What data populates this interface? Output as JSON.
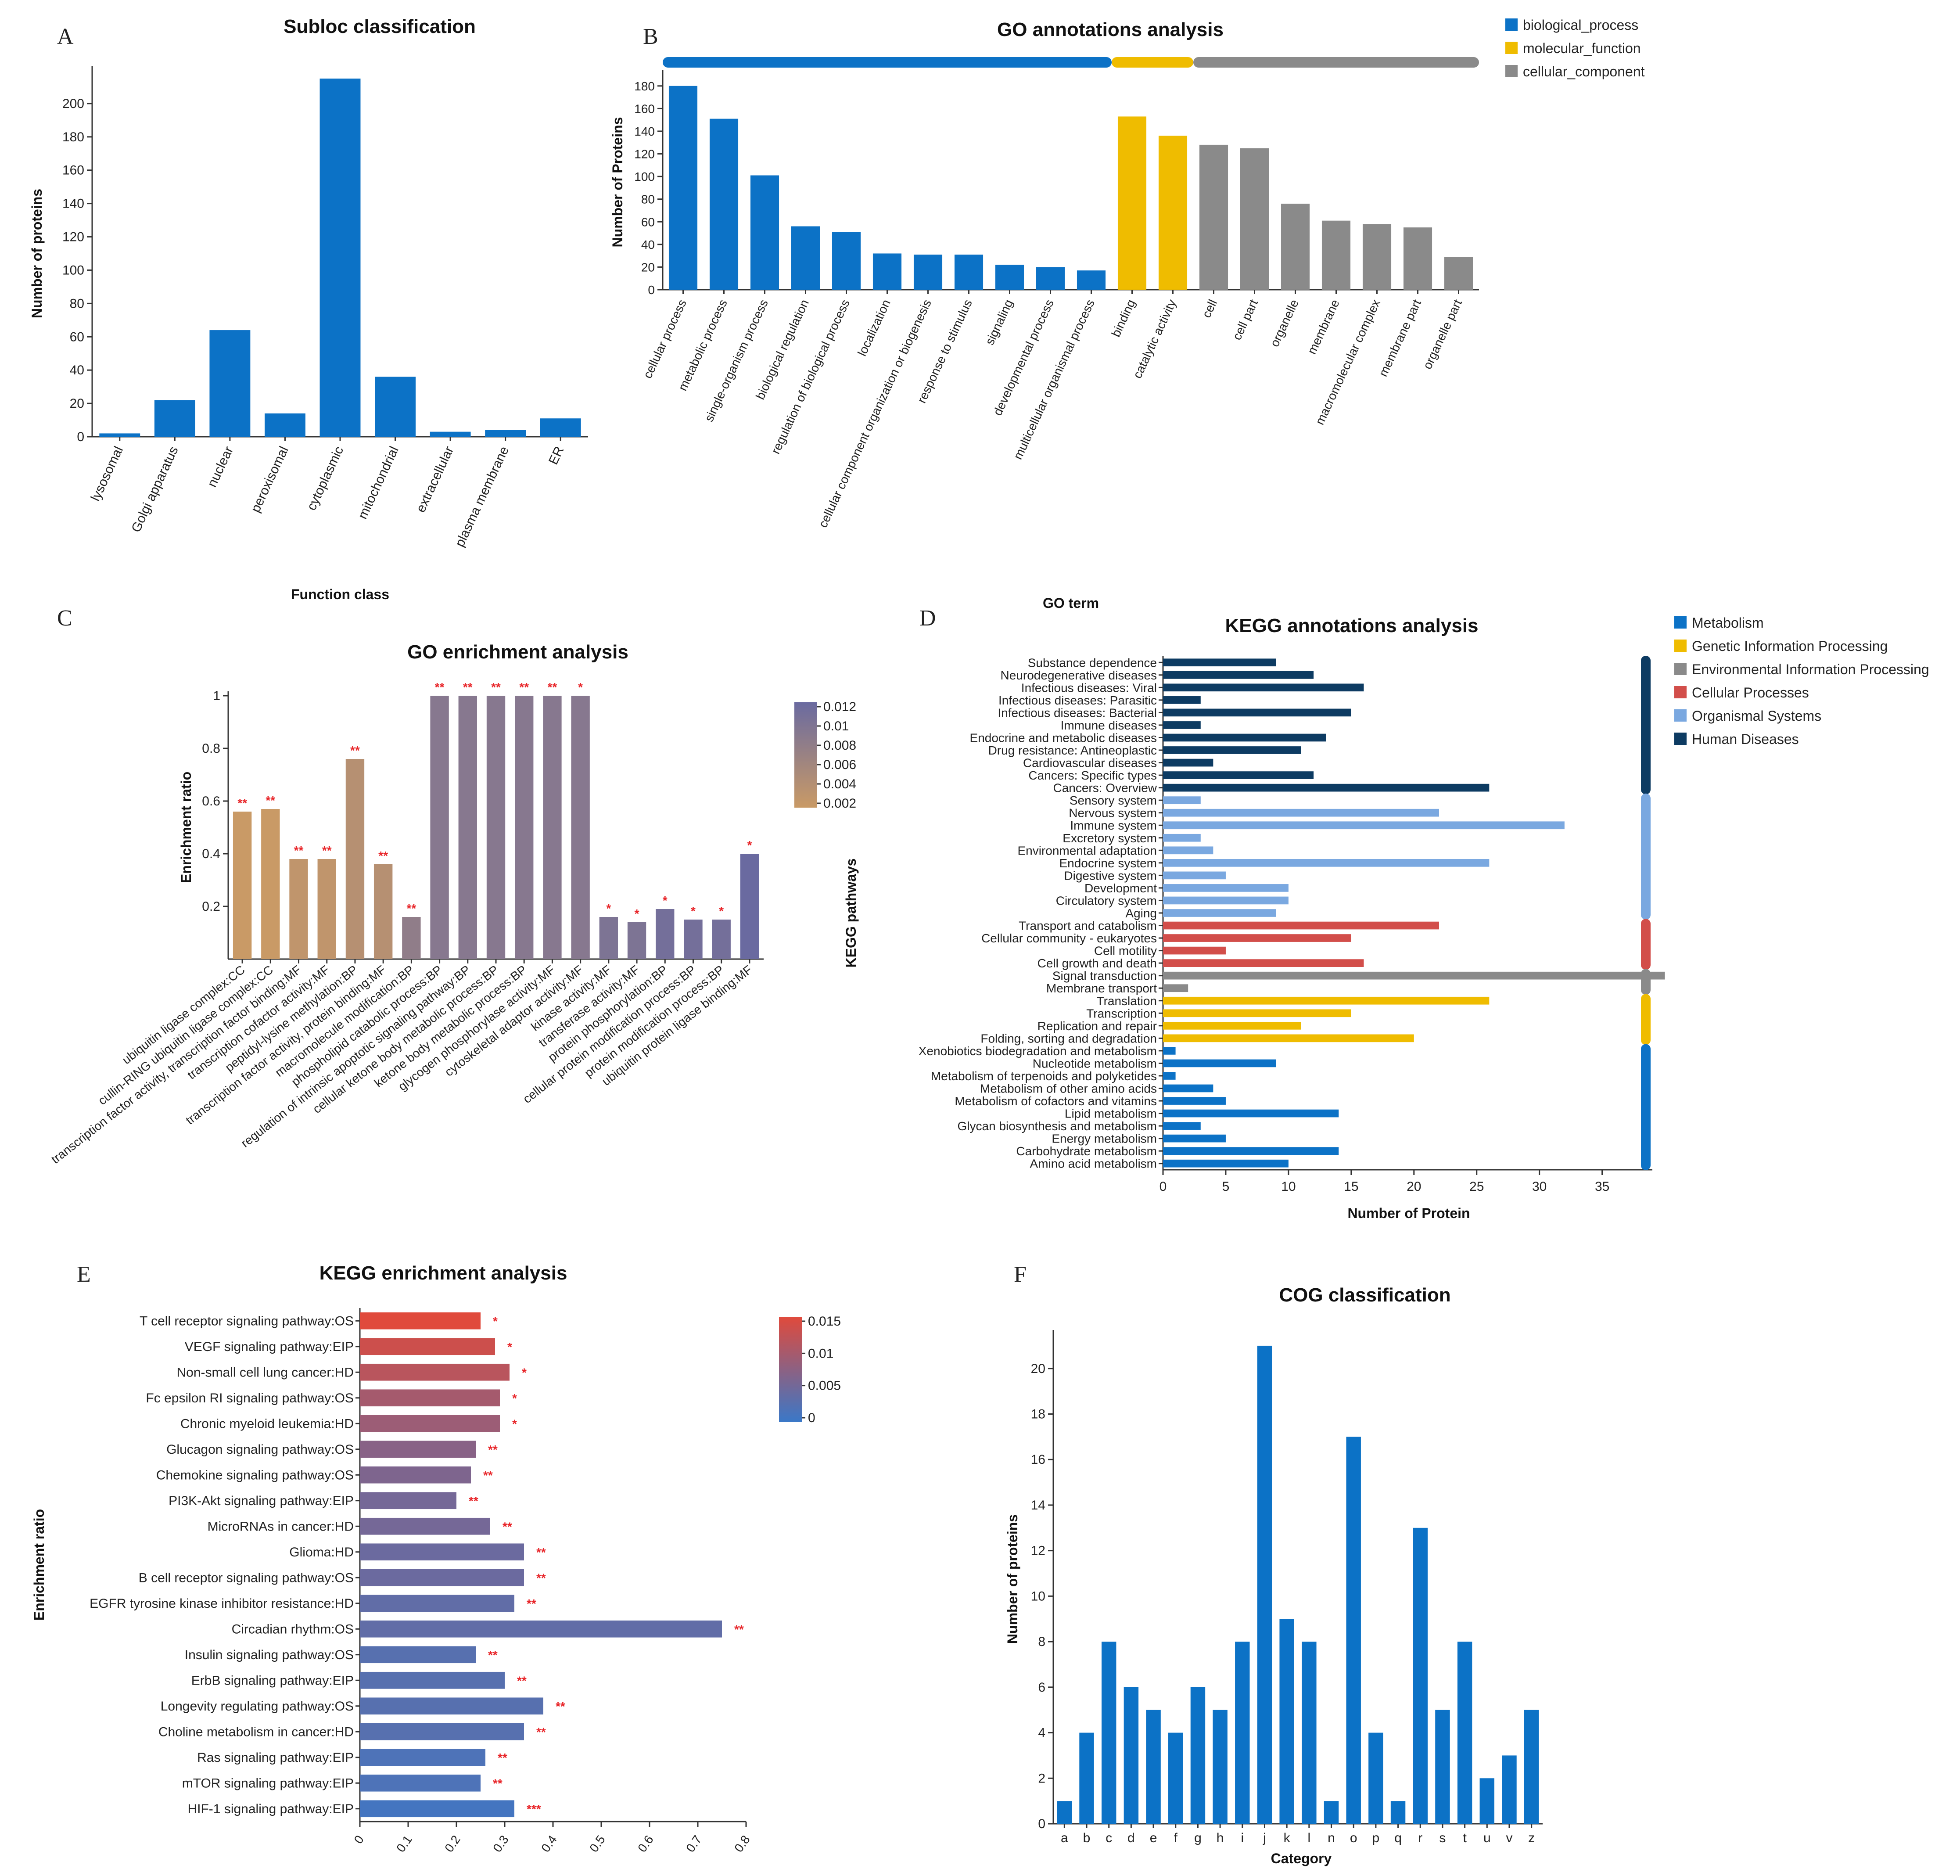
{
  "figure": {
    "panel_letters": [
      "A",
      "B",
      "C",
      "D",
      "E",
      "F"
    ],
    "colors": {
      "blue": "#0c72c6",
      "yellow": "#efbc00",
      "gray": "#8a8a8a",
      "red": "#d24e4a",
      "lightblue": "#7aa8e0",
      "navy": "#0d3b62"
    }
  },
  "chart_data": [
    {
      "id": "A",
      "type": "bar",
      "title": "Subloc classification",
      "xlabel": "Function class",
      "ylabel": "Number of proteins",
      "ylim": [
        0,
        220
      ],
      "yticks": [
        0,
        20,
        40,
        60,
        80,
        100,
        120,
        140,
        160,
        180,
        200
      ],
      "categories": [
        "lysosomal",
        "Golgi apparatus",
        "nuclear",
        "peroxisomal",
        "cytoplasmic",
        "mitochondrial",
        "extracellular",
        "plasma membrane",
        "ER"
      ],
      "values": [
        2,
        22,
        64,
        14,
        215,
        36,
        3,
        4,
        11
      ],
      "color": "#0c72c6"
    },
    {
      "id": "B",
      "type": "bar",
      "title": "GO annotations analysis",
      "xlabel": "GO term",
      "ylabel": "Number of Proteins",
      "ylim": [
        0,
        190
      ],
      "yticks": [
        0,
        20,
        40,
        60,
        80,
        100,
        120,
        140,
        160,
        180
      ],
      "legend": [
        {
          "label": "biological_process",
          "color": "#0c72c6"
        },
        {
          "label": "molecular_function",
          "color": "#efbc00"
        },
        {
          "label": "cellular_component",
          "color": "#8a8a8a"
        }
      ],
      "categories": [
        "cellular process",
        "metabolic process",
        "single-organism process",
        "biological regulation",
        "regulation of biological process",
        "localization",
        "cellular component organization or biogenesis",
        "response to stimulus",
        "signaling",
        "developmental process",
        "multicellular organismal process",
        "binding",
        "catalytic activity",
        "cell",
        "cell part",
        "organelle",
        "membrane",
        "macromolecular complex",
        "membrane part",
        "organelle part"
      ],
      "values": [
        180,
        151,
        101,
        56,
        51,
        32,
        31,
        31,
        22,
        20,
        17,
        153,
        136,
        128,
        125,
        76,
        61,
        58,
        55,
        29
      ],
      "groups": [
        "biological_process",
        "biological_process",
        "biological_process",
        "biological_process",
        "biological_process",
        "biological_process",
        "biological_process",
        "biological_process",
        "biological_process",
        "biological_process",
        "biological_process",
        "molecular_function",
        "molecular_function",
        "cellular_component",
        "cellular_component",
        "cellular_component",
        "cellular_component",
        "cellular_component",
        "cellular_component",
        "cellular_component"
      ]
    },
    {
      "id": "C",
      "type": "bar",
      "title": "GO enrichment analysis",
      "xlabel": "",
      "ylabel": "Enrichment ratio",
      "ylim": [
        0,
        1
      ],
      "yticks": [
        0.2,
        0.4,
        0.6,
        0.8,
        1
      ],
      "colorbar": {
        "ticks": [
          "0.012",
          "0.01",
          "0.008",
          "0.006",
          "0.004",
          "0.002"
        ],
        "low": "#c99a66",
        "high": "#6a6aa0"
      },
      "categories": [
        "ubiquitin ligase complex:CC",
        "cullin-RING ubiquitin ligase complex:CC",
        "transcription factor activity, transcription factor binding:MF",
        "transcription cofactor activity:MF",
        "peptidyl-lysine methylation:BP",
        "transcription factor activity, protein binding:MF",
        "macromolecule modification:BP",
        "phospholipid catabolic process:BP",
        "regulation of intrinsic apoptotic signaling pathway:BP",
        "cellular ketone body metabolic process:BP",
        "ketone body metabolic process:BP",
        "glycogen phosphorylase activity:MF",
        "cytoskeletal adaptor activity:MF",
        "kinase activity:MF",
        "transferase activity:MF",
        "protein phosphorylation:BP",
        "cellular protein modification process:BP",
        "protein modification process:BP",
        "ubiquitin protein ligase binding:MF"
      ],
      "values": [
        0.56,
        0.57,
        0.38,
        0.38,
        0.76,
        0.36,
        0.16,
        1.0,
        1.0,
        1.0,
        1.0,
        1.0,
        1.0,
        0.16,
        0.14,
        0.19,
        0.15,
        0.15,
        0.4
      ],
      "pvalue_color": [
        0.002,
        0.002,
        0.003,
        0.003,
        0.004,
        0.004,
        0.008,
        0.009,
        0.009,
        0.009,
        0.009,
        0.009,
        0.009,
        0.01,
        0.01,
        0.011,
        0.011,
        0.011,
        0.012
      ],
      "stars": [
        "**",
        "**",
        "**",
        "**",
        "**",
        "**",
        "**",
        "**",
        "**",
        "**",
        "**",
        "**",
        "*",
        "*",
        "*",
        "*",
        "*",
        "*",
        "*"
      ]
    },
    {
      "id": "D",
      "type": "bar",
      "orientation": "horizontal",
      "title": "KEGG annotations analysis",
      "xlabel": "Number of Protein",
      "ylabel": "KEGG pathways",
      "xlim": [
        0,
        39
      ],
      "xticks": [
        0,
        5,
        10,
        15,
        20,
        25,
        30,
        35
      ],
      "legend": [
        {
          "label": "Metabolism",
          "color": "#0c72c6"
        },
        {
          "label": "Genetic Information Processing",
          "color": "#efbc00"
        },
        {
          "label": "Environmental Information Processing",
          "color": "#8a8a8a"
        },
        {
          "label": "Cellular Processes",
          "color": "#d24e4a"
        },
        {
          "label": "Organismal Systems",
          "color": "#7aa8e0"
        },
        {
          "label": "Human Diseases",
          "color": "#0d3b62"
        }
      ],
      "categories": [
        "Substance dependence",
        "Neurodegenerative diseases",
        "Infectious diseases: Viral",
        "Infectious diseases: Parasitic",
        "Infectious diseases: Bacterial",
        "Immune diseases",
        "Endocrine and metabolic diseases",
        "Drug resistance: Antineoplastic",
        "Cardiovascular diseases",
        "Cancers: Specific types",
        "Cancers: Overview",
        "Sensory system",
        "Nervous system",
        "Immune system",
        "Excretory system",
        "Environmental adaptation",
        "Endocrine system",
        "Digestive system",
        "Development",
        "Circulatory system",
        "Aging",
        "Transport and catabolism",
        "Cellular community - eukaryotes",
        "Cell motility",
        "Cell growth and death",
        "Signal transduction",
        "Membrane transport",
        "Translation",
        "Transcription",
        "Replication and repair",
        "Folding, sorting and degradation",
        "Xenobiotics biodegradation and metabolism",
        "Nucleotide metabolism",
        "Metabolism of terpenoids and polyketides",
        "Metabolism of other amino acids",
        "Metabolism of cofactors and vitamins",
        "Lipid metabolism",
        "Glycan biosynthesis and metabolism",
        "Energy metabolism",
        "Carbohydrate metabolism",
        "Amino acid metabolism"
      ],
      "values": [
        9,
        12,
        16,
        3,
        15,
        3,
        13,
        11,
        4,
        12,
        26,
        3,
        22,
        32,
        3,
        4,
        26,
        5,
        10,
        10,
        9,
        22,
        15,
        5,
        16,
        40,
        2,
        26,
        15,
        11,
        20,
        1,
        9,
        1,
        4,
        5,
        14,
        3,
        5,
        14,
        10
      ],
      "groups": [
        "Human Diseases",
        "Human Diseases",
        "Human Diseases",
        "Human Diseases",
        "Human Diseases",
        "Human Diseases",
        "Human Diseases",
        "Human Diseases",
        "Human Diseases",
        "Human Diseases",
        "Human Diseases",
        "Organismal Systems",
        "Organismal Systems",
        "Organismal Systems",
        "Organismal Systems",
        "Organismal Systems",
        "Organismal Systems",
        "Organismal Systems",
        "Organismal Systems",
        "Organismal Systems",
        "Organismal Systems",
        "Cellular Processes",
        "Cellular Processes",
        "Cellular Processes",
        "Cellular Processes",
        "Environmental Information Processing",
        "Environmental Information Processing",
        "Genetic Information Processing",
        "Genetic Information Processing",
        "Genetic Information Processing",
        "Genetic Information Processing",
        "Metabolism",
        "Metabolism",
        "Metabolism",
        "Metabolism",
        "Metabolism",
        "Metabolism",
        "Metabolism",
        "Metabolism",
        "Metabolism",
        "Metabolism"
      ]
    },
    {
      "id": "E",
      "type": "bar",
      "orientation": "horizontal",
      "title": "KEGG enrichment analysis",
      "xlabel": "",
      "ylabel": "Enrichment ratio",
      "xlim": [
        0,
        0.8
      ],
      "xticks": [
        0,
        0.1,
        0.2,
        0.3,
        0.4,
        0.5,
        0.6,
        0.7,
        0.8
      ],
      "colorbar": {
        "ticks": [
          "0.015",
          "0.01",
          "0.005",
          "0"
        ],
        "low": "#3a78c8",
        "high": "#e04a3c"
      },
      "categories": [
        "T cell receptor signaling pathway:OS",
        "VEGF signaling pathway:EIP",
        "Non-small cell lung cancer:HD",
        "Fc epsilon RI signaling pathway:OS",
        "Chronic myeloid leukemia:HD",
        "Glucagon signaling pathway:OS",
        "Chemokine signaling pathway:OS",
        "PI3K-Akt signaling pathway:EIP",
        "MicroRNAs in cancer:HD",
        "Glioma:HD",
        "B cell receptor signaling pathway:OS",
        "EGFR tyrosine kinase inhibitor resistance:HD",
        "Circadian rhythm:OS",
        "Insulin signaling pathway:OS",
        "ErbB signaling pathway:EIP",
        "Longevity regulating pathway:OS",
        "Choline metabolism in cancer:HD",
        "Ras signaling pathway:EIP",
        "mTOR signaling pathway:EIP",
        "HIF-1 signaling pathway:EIP"
      ],
      "values": [
        0.25,
        0.28,
        0.31,
        0.29,
        0.29,
        0.24,
        0.23,
        0.2,
        0.27,
        0.34,
        0.34,
        0.32,
        0.75,
        0.24,
        0.3,
        0.38,
        0.34,
        0.26,
        0.25,
        0.32
      ],
      "pvalue_color": [
        0.017,
        0.015,
        0.013,
        0.011,
        0.01,
        0.008,
        0.007,
        0.006,
        0.006,
        0.005,
        0.005,
        0.004,
        0.004,
        0.003,
        0.003,
        0.003,
        0.003,
        0.002,
        0.002,
        0.001
      ],
      "stars": [
        "*",
        "*",
        "*",
        "*",
        "*",
        "**",
        "**",
        "**",
        "**",
        "**",
        "**",
        "**",
        "**",
        "**",
        "**",
        "**",
        "**",
        "**",
        "**",
        "***"
      ]
    },
    {
      "id": "F",
      "type": "bar",
      "title": "COG classification",
      "xlabel": "Category",
      "ylabel": "Number of proteins",
      "ylim": [
        0,
        21.5
      ],
      "yticks": [
        0,
        2,
        4,
        6,
        8,
        10,
        12,
        14,
        16,
        18,
        20
      ],
      "categories": [
        "a",
        "b",
        "c",
        "d",
        "e",
        "f",
        "g",
        "h",
        "i",
        "j",
        "k",
        "l",
        "n",
        "o",
        "p",
        "q",
        "r",
        "s",
        "t",
        "u",
        "v",
        "z"
      ],
      "values": [
        1,
        4,
        8,
        6,
        5,
        4,
        6,
        5,
        8,
        21,
        9,
        8,
        1,
        17,
        4,
        1,
        13,
        5,
        8,
        2,
        3,
        5
      ],
      "color": "#0c72c6"
    }
  ]
}
